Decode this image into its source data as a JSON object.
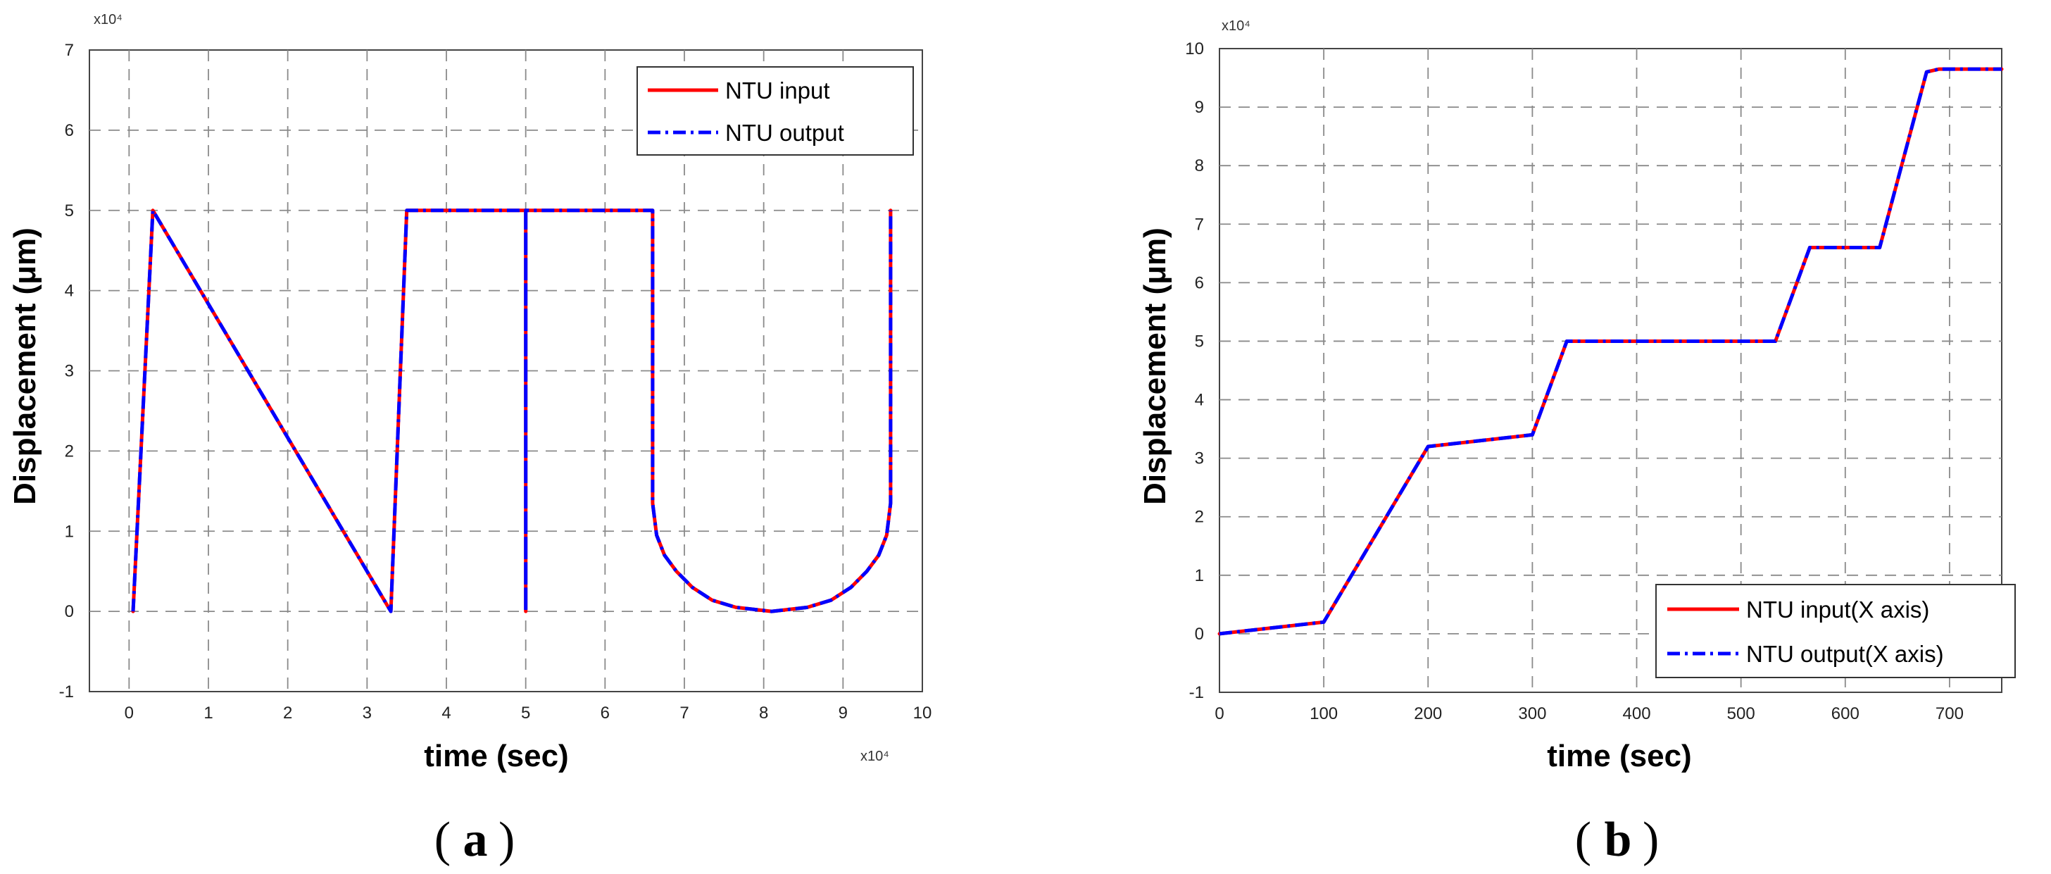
{
  "chart_data": [
    {
      "id": "a",
      "type": "line",
      "caption": "a",
      "xlabel": "time (sec)",
      "ylabel": "Displacement (μm)",
      "x_multiplier": "x10⁴",
      "y_multiplier": "x10⁴",
      "xlim": [
        -0.5,
        10
      ],
      "ylim": [
        -1,
        7
      ],
      "xticks": [
        0,
        1,
        2,
        3,
        4,
        5,
        6,
        7,
        8,
        9,
        10
      ],
      "yticks": [
        -1,
        0,
        1,
        2,
        3,
        4,
        5,
        6,
        7
      ],
      "grid": true,
      "legend_position": "top-right",
      "series": [
        {
          "name": "NTU input",
          "color": "#ff0000",
          "style": "solid",
          "x": [
            0.05,
            0.3,
            3.3,
            3.5,
            5.0,
            5.0,
            5.0,
            6.6,
            6.6,
            6.65,
            6.75,
            6.9,
            7.1,
            7.35,
            7.65,
            8.1,
            8.55,
            8.85,
            9.1,
            9.3,
            9.45,
            9.55,
            9.6,
            9.6,
            9.6
          ],
          "y": [
            0,
            5,
            0,
            5,
            5,
            0,
            5,
            5,
            1.35,
            0.95,
            0.7,
            0.5,
            0.3,
            0.14,
            0.05,
            0,
            0.05,
            0.14,
            0.3,
            0.5,
            0.7,
            0.95,
            1.35,
            5,
            5
          ]
        },
        {
          "name": "NTU output",
          "color": "#0000ff",
          "style": "dashdot",
          "x": [
            0.05,
            0.3,
            3.3,
            3.5,
            5.0,
            5.0,
            5.0,
            6.6,
            6.6,
            6.65,
            6.75,
            6.9,
            7.1,
            7.35,
            7.65,
            8.1,
            8.55,
            8.85,
            9.1,
            9.3,
            9.45,
            9.55,
            9.6,
            9.6,
            9.6
          ],
          "y": [
            0,
            5,
            0,
            5,
            5,
            0,
            5,
            5,
            1.35,
            0.95,
            0.7,
            0.5,
            0.3,
            0.14,
            0.05,
            0,
            0.05,
            0.14,
            0.3,
            0.5,
            0.7,
            0.95,
            1.35,
            5,
            5
          ]
        }
      ]
    },
    {
      "id": "b",
      "type": "line",
      "caption": "b",
      "xlabel": "time (sec)",
      "ylabel": "Displacement (μm)",
      "y_multiplier": "x10⁴",
      "xlim": [
        0,
        750
      ],
      "ylim": [
        -1,
        10
      ],
      "xticks": [
        0,
        100,
        200,
        300,
        400,
        500,
        600,
        700
      ],
      "yticks": [
        -1,
        0,
        1,
        2,
        3,
        4,
        5,
        6,
        7,
        8,
        9,
        10
      ],
      "grid": true,
      "legend_position": "bottom-right",
      "series": [
        {
          "name": "NTU input(X axis)",
          "color": "#ff0000",
          "style": "solid",
          "x": [
            0,
            100,
            200,
            300,
            333,
            533,
            566,
            633,
            678,
            690,
            750
          ],
          "y": [
            0,
            0.2,
            3.2,
            3.4,
            5,
            5,
            6.6,
            6.6,
            9.6,
            9.65,
            9.65
          ]
        },
        {
          "name": "NTU output(X axis)",
          "color": "#0000ff",
          "style": "dashdot",
          "x": [
            0,
            100,
            200,
            300,
            333,
            533,
            566,
            633,
            678,
            690,
            750
          ],
          "y": [
            0,
            0.2,
            3.2,
            3.4,
            5,
            5,
            6.6,
            6.6,
            9.6,
            9.65,
            9.65
          ]
        }
      ]
    }
  ]
}
